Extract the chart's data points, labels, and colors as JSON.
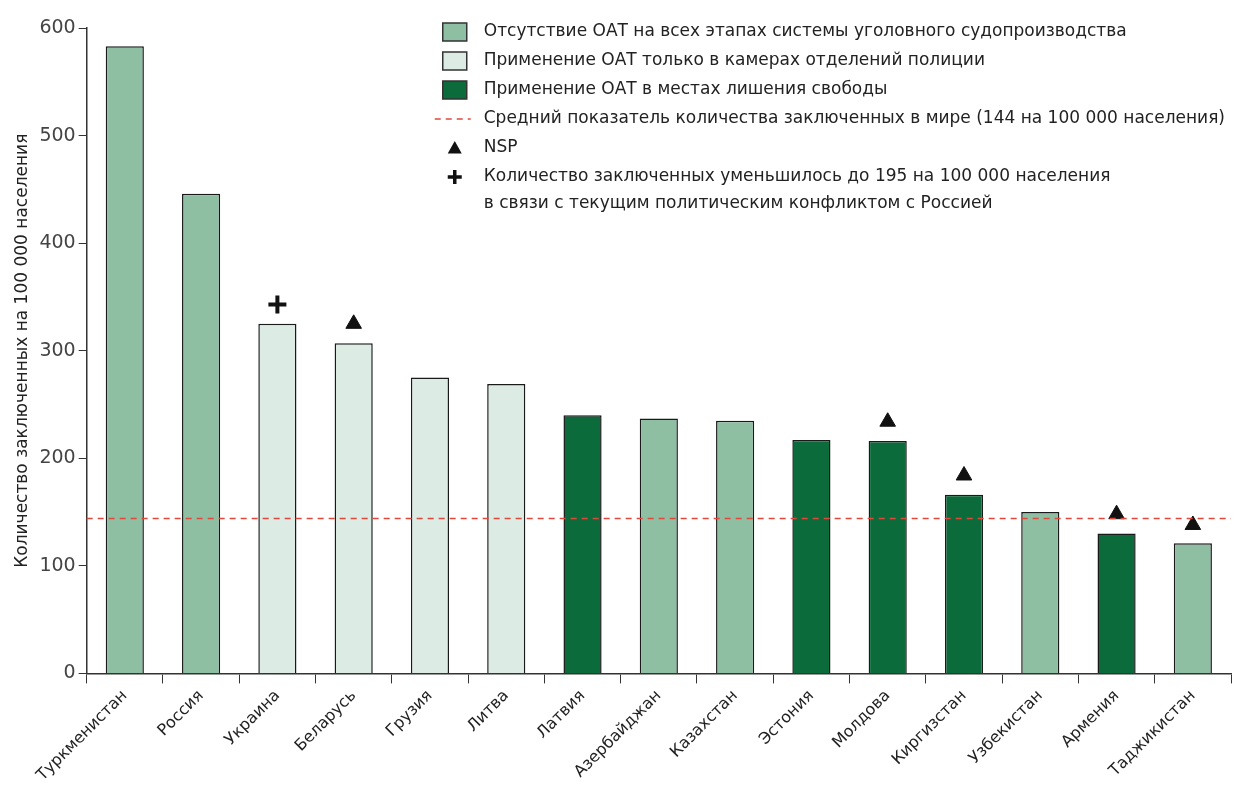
{
  "chart_data": {
    "type": "bar",
    "ylabel": "Количество заключенных на 100 000 населения",
    "categories": [
      "Туркменистан",
      "Россия",
      "Украина",
      "Беларусь",
      "Грузия",
      "Литва",
      "Латвия",
      "Азербайджан",
      "Казахстан",
      "Эстония",
      "Молдова",
      "Киргизстан",
      "Узбекистан",
      "Армения",
      "Таджикистан"
    ],
    "series": [
      {
        "name": "Отсутствие ОАТ на всех этапах системы уголовного судопроизводства",
        "color": "#8fbfa3",
        "values": [
          583,
          446,
          null,
          null,
          null,
          null,
          null,
          237,
          235,
          null,
          null,
          null,
          150,
          null,
          121
        ]
      },
      {
        "name": "Применение ОАТ только в камерах отделений полиции",
        "color": "#dcebe3",
        "values": [
          null,
          null,
          325,
          307,
          275,
          269,
          null,
          null,
          null,
          null,
          null,
          null,
          null,
          null,
          null
        ]
      },
      {
        "name": "Применение ОАТ в местах лишения свободы",
        "color": "#0b6b3a",
        "values": [
          null,
          null,
          null,
          null,
          null,
          null,
          240,
          null,
          null,
          217,
          216,
          166,
          null,
          130,
          null
        ]
      },
      {
        "type": "scatter",
        "name": "NSP",
        "color": "#111111",
        "marker": "triangle",
        "x": [
          "Беларусь",
          "Молдова",
          "Киргизстан",
          "Армения",
          "Таджикистан"
        ],
        "values": [
          325,
          234,
          184,
          148,
          138
        ]
      },
      {
        "type": "scatter",
        "name": "Количество заключенных уменьшилось до 195 на 100 000 населения\nв связи с текущим политическим конфликтом с Россией",
        "color": "#111111",
        "marker": "cross",
        "x": [
          "Украина"
        ],
        "values": [
          343
        ]
      }
    ],
    "ref_lines": [
      {
        "axis": "y",
        "value": 144,
        "label": "Средний показатель количества заключенных в мире (144 на 100 000 населения)",
        "color": "#e0483c",
        "line_style": "dashed"
      }
    ],
    "ylim": [
      0,
      600
    ],
    "yticks": [
      0,
      100,
      200,
      300,
      400,
      500,
      600
    ],
    "grid": false,
    "legend": "top right"
  }
}
